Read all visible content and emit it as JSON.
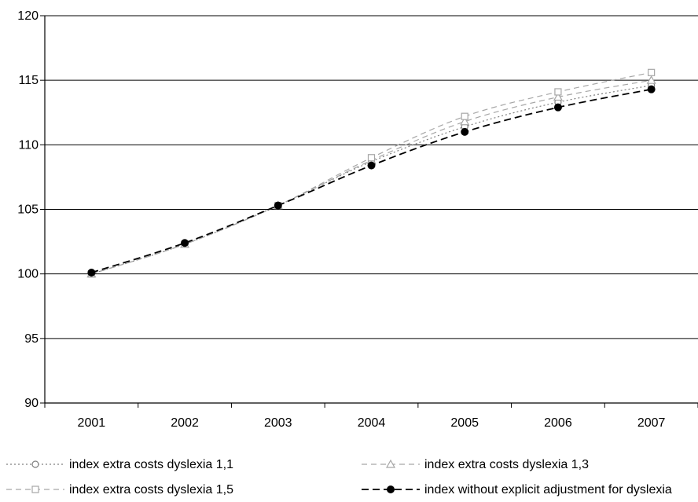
{
  "chart_data": {
    "type": "line",
    "title": "",
    "xlabel": "",
    "ylabel": "",
    "categories": [
      "2001",
      "2002",
      "2003",
      "2004",
      "2005",
      "2006",
      "2007"
    ],
    "ylim": [
      90,
      120
    ],
    "yticks": [
      90,
      95,
      100,
      105,
      110,
      115,
      120
    ],
    "grid": "horizontal",
    "legend_position": "bottom",
    "series": [
      {
        "name": "index extra costs dyslexia 1,1",
        "values": [
          100.0,
          102.3,
          105.3,
          108.7,
          111.4,
          113.3,
          114.6
        ],
        "color": "#7f7f7f",
        "marker": "circle-open",
        "dash": "2,3"
      },
      {
        "name": "index extra costs dyslexia 1,3",
        "values": [
          100.0,
          102.3,
          105.3,
          108.8,
          111.8,
          113.7,
          115.0
        ],
        "color": "#a6a6a6",
        "marker": "triangle-open",
        "dash": "7,5"
      },
      {
        "name": "index extra costs dyslexia 1,5",
        "values": [
          100.0,
          102.3,
          105.3,
          109.0,
          112.2,
          114.1,
          115.6
        ],
        "color": "#a6a6a6",
        "marker": "square-open",
        "dash": "7,5"
      },
      {
        "name": "index without explicit adjustment for dyslexia",
        "values": [
          100.1,
          102.4,
          105.3,
          108.4,
          111.0,
          112.9,
          114.3
        ],
        "color": "#000000",
        "marker": "circle-filled",
        "dash": "9,5"
      }
    ]
  }
}
